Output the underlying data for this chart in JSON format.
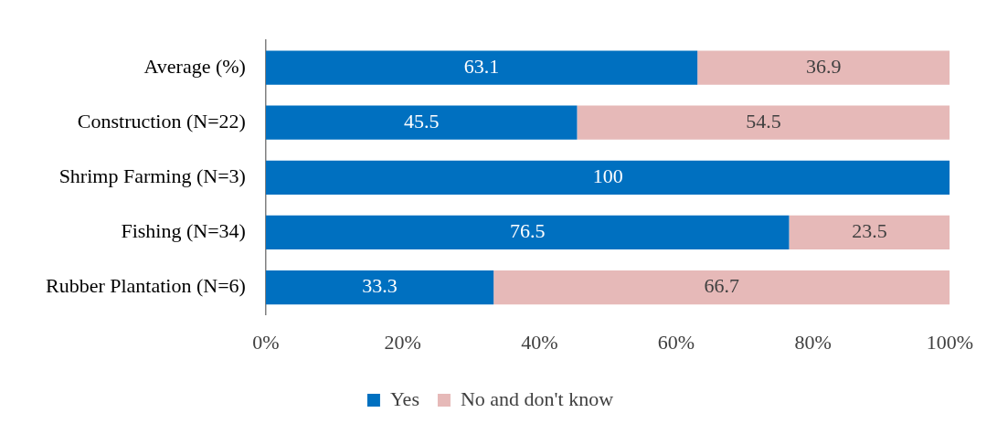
{
  "chart_data": {
    "type": "bar",
    "orientation": "horizontal",
    "stacked": true,
    "categories": [
      "Average (%)",
      "Construction (N=22)",
      "Shrimp Farming (N=3)",
      "Fishing (N=34)",
      "Rubber Plantation (N=6)"
    ],
    "series": [
      {
        "name": "Yes",
        "color": "#0070c0",
        "values": [
          63.1,
          45.5,
          100,
          76.5,
          33.3
        ],
        "value_labels": [
          "63.1",
          "45.5",
          "100",
          "76.5",
          "33.3"
        ]
      },
      {
        "name": "No and don't know",
        "color": "#e6b9b8",
        "values": [
          36.9,
          54.5,
          0,
          23.5,
          66.7
        ],
        "value_labels": [
          "36.9",
          "54.5",
          null,
          "23.5",
          "66.7"
        ]
      }
    ],
    "xlim": [
      0,
      100
    ],
    "xticks": [
      {
        "value": 0,
        "label": "0%"
      },
      {
        "value": 20,
        "label": "20%"
      },
      {
        "value": 40,
        "label": "40%"
      },
      {
        "value": 60,
        "label": "60%"
      },
      {
        "value": 80,
        "label": "80%"
      },
      {
        "value": 100,
        "label": "100%"
      }
    ],
    "grid": false,
    "legend": "bottom"
  }
}
